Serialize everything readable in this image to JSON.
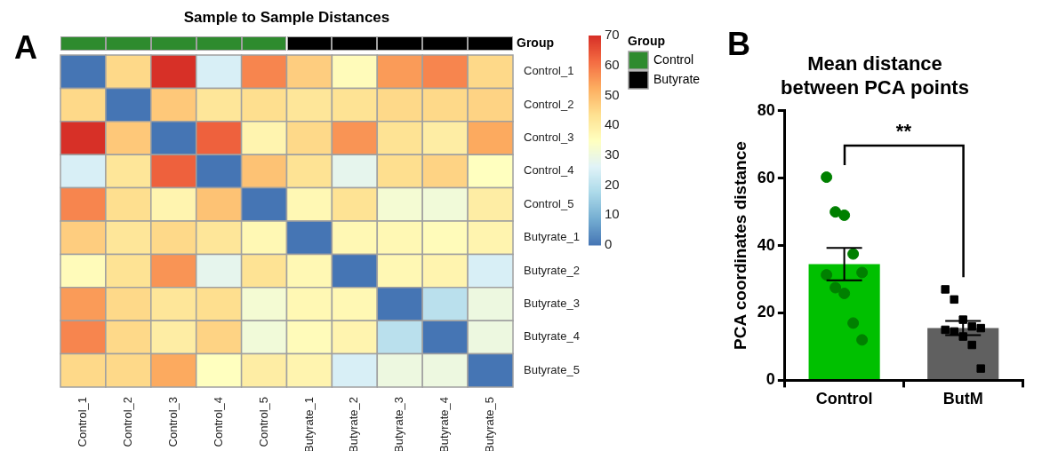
{
  "chart_data": [
    {
      "type": "heatmap",
      "title": "Sample to Sample Distances",
      "categories": [
        "Control_1",
        "Control_2",
        "Control_3",
        "Control_4",
        "Control_5",
        "Butyrate_1",
        "Butyrate_2",
        "Butyrate_3",
        "Butyrate_4",
        "Butyrate_5"
      ],
      "y_categories": [
        "Control_1",
        "Control_2",
        "Control_3",
        "Control_4",
        "Control_5",
        "Butyrate_1",
        "Butyrate_2",
        "Butyrate_3",
        "Butyrate_4",
        "Butyrate_5"
      ],
      "cells": [
        [
          0,
          45,
          70,
          25,
          58,
          47,
          36,
          55,
          58,
          45
        ],
        [
          45,
          0,
          48,
          42,
          44,
          42,
          43,
          45,
          45,
          46
        ],
        [
          70,
          48,
          0,
          63,
          38,
          45,
          56,
          43,
          40,
          53
        ],
        [
          25,
          42,
          63,
          0,
          49,
          43,
          28,
          44,
          46,
          35
        ],
        [
          58,
          44,
          38,
          49,
          0,
          37,
          43,
          32,
          31,
          40
        ],
        [
          47,
          42,
          45,
          42,
          37,
          0,
          37,
          37,
          36,
          38
        ],
        [
          36,
          43,
          56,
          28,
          43,
          37,
          0,
          37,
          38,
          25
        ],
        [
          55,
          45,
          42,
          44,
          32,
          37,
          37,
          0,
          20,
          30
        ],
        [
          58,
          45,
          40,
          46,
          31,
          36,
          38,
          20,
          0,
          30
        ],
        [
          45,
          45,
          53,
          35,
          40,
          38,
          25,
          30,
          30,
          0
        ]
      ],
      "clim": [
        0,
        70
      ],
      "cticks": [
        0,
        10,
        20,
        30,
        40,
        50,
        60,
        70
      ],
      "series": [
        {
          "name": "Control",
          "color": "#2e8b2e",
          "x": [
            "Control_1",
            "Control_2",
            "Control_3",
            "Control_4",
            "Control_5"
          ],
          "values": [
            null,
            null,
            null,
            null,
            null
          ]
        },
        {
          "name": "Butyrate",
          "color": "#000000",
          "x": [
            "Butyrate_1",
            "Butyrate_2",
            "Butyrate_3",
            "Butyrate_4",
            "Butyrate_5"
          ],
          "values": [
            null,
            null,
            null,
            null,
            null
          ]
        }
      ],
      "legend_title": "Group",
      "legend": "right",
      "annotations": [
        "A",
        "Group"
      ]
    },
    {
      "type": "bar",
      "title": "Mean distance between PCA points",
      "ylabel": "PCA coordinates distance",
      "categories": [
        "Control",
        "ButM"
      ],
      "series": [
        {
          "type": "bar",
          "colors": [
            "#00c000",
            "#606060"
          ],
          "values": [
            34.5,
            15.5
          ],
          "errors": [
            4.8,
            2.1
          ]
        },
        {
          "type": "scatter",
          "color": "#008000",
          "marker": "circle",
          "x": [
            "Control",
            "Control",
            "Control",
            "Control",
            "Control",
            "Control",
            "Control",
            "Control",
            "Control",
            "Control"
          ],
          "values": [
            60.3,
            50,
            49,
            37.5,
            32,
            31.3,
            27.5,
            25.8,
            17,
            12
          ]
        },
        {
          "type": "scatter",
          "color": "#000000",
          "marker": "square",
          "x": [
            "ButM",
            "ButM",
            "ButM",
            "ButM",
            "ButM",
            "ButM",
            "ButM",
            "ButM",
            "ButM",
            "ButM"
          ],
          "values": [
            27,
            24,
            18,
            16,
            15.5,
            15,
            14.5,
            13,
            10.5,
            3.5
          ]
        }
      ],
      "ylim": [
        0,
        80
      ],
      "yticks": [
        0,
        20,
        40,
        60,
        80
      ],
      "grid": false,
      "legend": false,
      "annotations": [
        "B",
        "**"
      ]
    }
  ]
}
